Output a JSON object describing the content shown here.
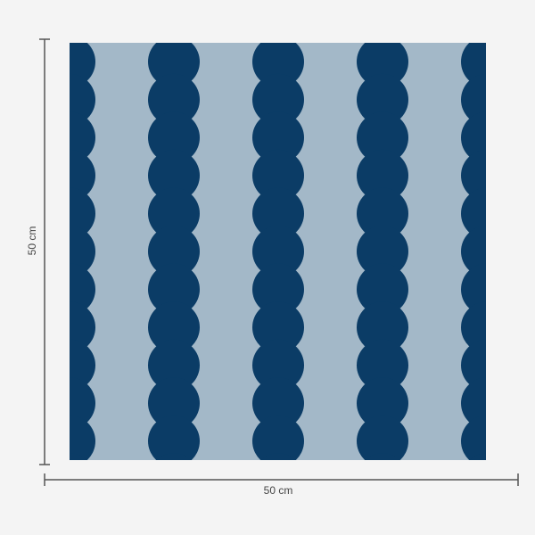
{
  "dimensions": {
    "height_label": "50 cm",
    "width_label": "50 cm"
  },
  "pattern": {
    "name": "scalloped-stripes",
    "colors": {
      "dark": "#0b3c66",
      "light": "#a3b8c8",
      "background": "#f4f4f4",
      "dimension_line": "#555555"
    },
    "circles_per_column": 11
  }
}
